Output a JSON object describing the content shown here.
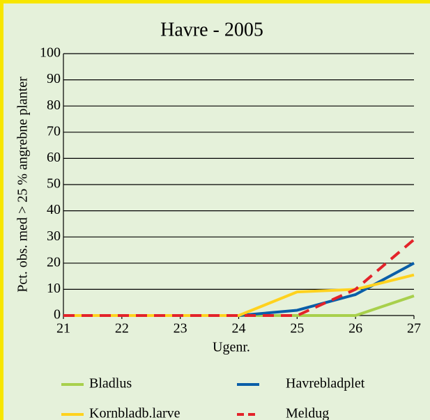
{
  "chart_data": {
    "type": "line",
    "title": "Havre - 2005",
    "x_label": "Ugenr.",
    "y_label": "Pct. obs. med > 25 % angrebne planter",
    "x": [
      21,
      22,
      23,
      24,
      25,
      26,
      27
    ],
    "xlim": [
      21,
      27
    ],
    "xticks": [
      21,
      22,
      23,
      24,
      25,
      26,
      27
    ],
    "ylim": [
      0,
      100
    ],
    "yticks": [
      0,
      10,
      20,
      30,
      40,
      50,
      60,
      70,
      80,
      90,
      100
    ],
    "grid": true,
    "series": [
      {
        "name": "Bladlus",
        "color": "#a8d04c",
        "dashed": false,
        "values": [
          0,
          0,
          0,
          0,
          0,
          0,
          7.5
        ]
      },
      {
        "name": "Havrebladplet",
        "color": "#0a5ea8",
        "dashed": false,
        "values": [
          0,
          0,
          0,
          0,
          2,
          8,
          20
        ]
      },
      {
        "name": "Kornbladb.larve",
        "color": "#ffd21e",
        "dashed": false,
        "values": [
          0,
          0,
          0,
          0,
          9,
          10,
          15.5
        ]
      },
      {
        "name": "Meldug",
        "color": "#e3232a",
        "dashed": true,
        "values": [
          0,
          0,
          0,
          0,
          0,
          10,
          29
        ]
      }
    ]
  }
}
